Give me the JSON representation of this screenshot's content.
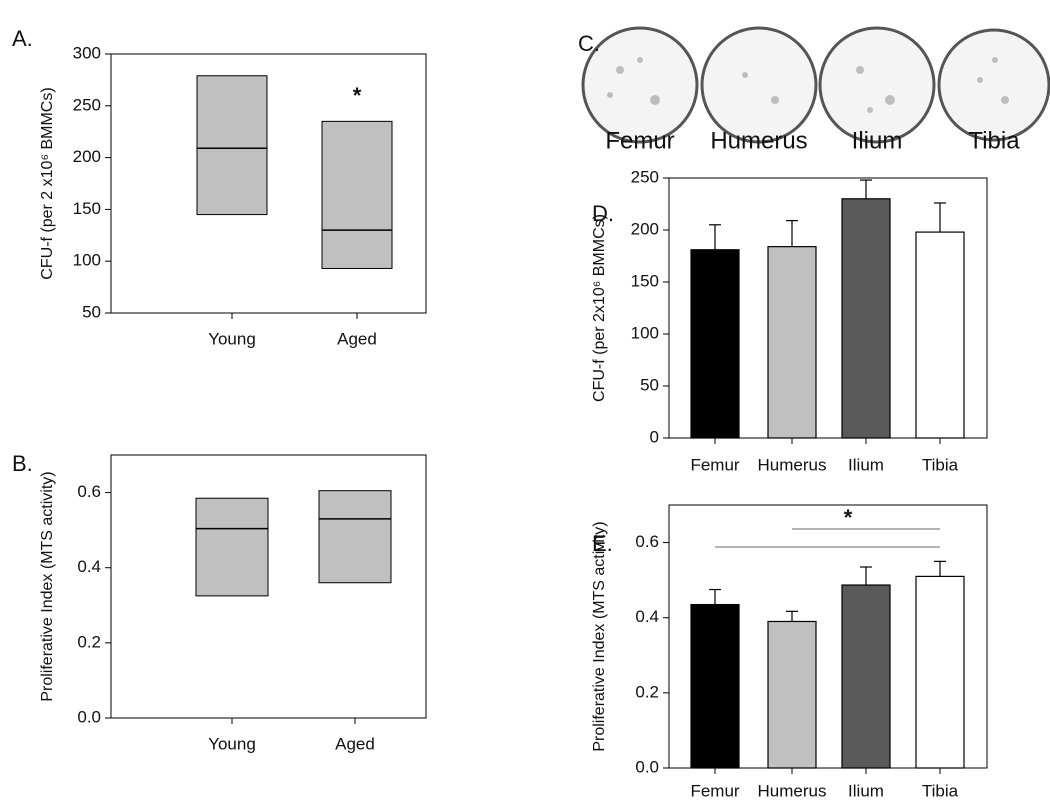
{
  "chart_data": [
    {
      "type": "box",
      "panel": "A.",
      "y_label": "CFU-f (per 2 x10⁶ BMMCs)",
      "categories": [
        "Young",
        "Aged"
      ],
      "low": [
        145,
        93
      ],
      "median": [
        209,
        130
      ],
      "high": [
        279,
        235
      ],
      "color": "#c0c0c0",
      "ylim": [
        50,
        300
      ],
      "yticks": [
        50,
        100,
        150,
        200,
        250,
        300
      ],
      "annotation": "*"
    },
    {
      "type": "box",
      "panel": "B.",
      "y_label": "Proliferative Index (MTS activity)",
      "categories": [
        "Young",
        "Aged"
      ],
      "low": [
        0.325,
        0.36
      ],
      "median": [
        0.504,
        0.53
      ],
      "high": [
        0.585,
        0.605
      ],
      "color": "#c0c0c0",
      "ylim": [
        0,
        0.7
      ],
      "yticks": [
        {
          "value": 0,
          "label": "0.0"
        },
        0.2,
        0.4,
        0.6
      ]
    },
    {
      "type": "image",
      "panel": "C.",
      "categories": [
        "Femur",
        "Humerus",
        "Ilium",
        "Tibia"
      ]
    },
    {
      "type": "bar",
      "panel": "D.",
      "y_label": "CFU-f (per 2x10⁶ BMMCs)",
      "categories": [
        "Femur",
        "Humerus",
        "Ilium",
        "Tibia"
      ],
      "values": [
        181,
        184,
        230,
        198
      ],
      "errors": [
        24,
        25,
        18,
        28
      ],
      "colors": [
        "#000000",
        "#c0c0c0",
        "#5a5a5a",
        "#ffffff"
      ],
      "ylim": [
        0,
        250
      ],
      "yticks": [
        0,
        50,
        100,
        150,
        200,
        250
      ]
    },
    {
      "type": "bar",
      "panel": "E.",
      "y_label": "Proliferative Index (MTS activity)",
      "categories": [
        "Femur",
        "Humerus",
        "Ilium",
        "Tibia"
      ],
      "values": [
        0.435,
        0.39,
        0.487,
        0.51
      ],
      "errors": [
        0.04,
        0.027,
        0.048,
        0.04
      ],
      "colors": [
        "#000000",
        "#c0c0c0",
        "#5a5a5a",
        "#ffffff"
      ],
      "ylim": [
        0,
        0.7
      ],
      "yticks": [
        {
          "value": 0,
          "label": "0.0"
        },
        0.2,
        0.4,
        0.6
      ],
      "annotation": "*"
    }
  ]
}
